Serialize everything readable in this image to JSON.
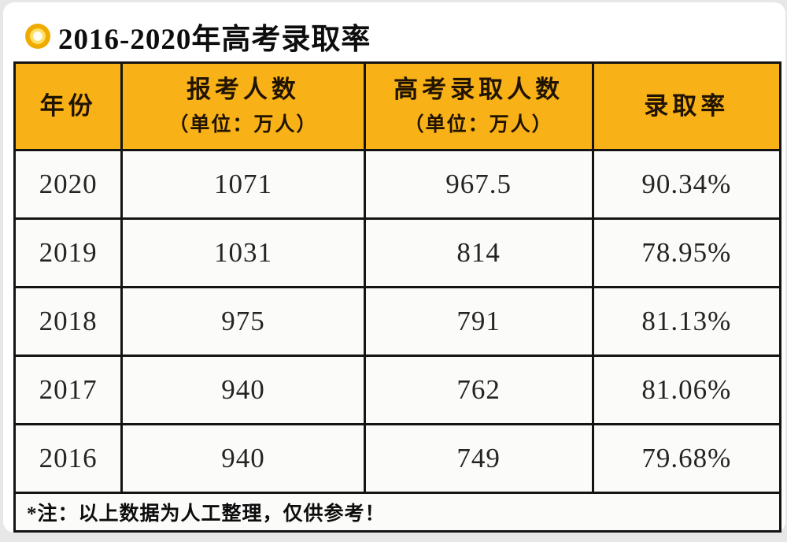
{
  "page": {
    "background_color": "#e7e7e7",
    "card_color": "#ffffff"
  },
  "header": {
    "icon": "gold-ring-icon",
    "icon_color": "#f0ab00",
    "title": "2016-2020年高考录取率"
  },
  "table": {
    "header_bg": "#f8b117",
    "border_color": "#141414",
    "columns": [
      {
        "label": "年份",
        "sublabel": ""
      },
      {
        "label": "报考人数",
        "sublabel": "（单位：万人）"
      },
      {
        "label": "高考录取人数",
        "sublabel": "（单位：万人）"
      },
      {
        "label": "录取率",
        "sublabel": ""
      }
    ],
    "rows": [
      [
        "2020",
        "1071",
        "967.5",
        "90.34%"
      ],
      [
        "2019",
        "1031",
        "814",
        "78.95%"
      ],
      [
        "2018",
        "975",
        "791",
        "81.13%"
      ],
      [
        "2017",
        "940",
        "762",
        "81.06%"
      ],
      [
        "2016",
        "940",
        "749",
        "79.68%"
      ]
    ],
    "footnote": "*注：以上数据为人工整理，仅供参考！"
  },
  "chart_data": {
    "type": "table",
    "title": "2016-2020年高考录取率",
    "columns": [
      "年份",
      "报考人数（单位：万人）",
      "高考录取人数（单位：万人）",
      "录取率"
    ],
    "rows": [
      {
        "year": 2020,
        "applicants_wan": 1071,
        "admitted_wan": 967.5,
        "admission_rate_pct": 90.34
      },
      {
        "year": 2019,
        "applicants_wan": 1031,
        "admitted_wan": 814,
        "admission_rate_pct": 78.95
      },
      {
        "year": 2018,
        "applicants_wan": 975,
        "admitted_wan": 791,
        "admission_rate_pct": 81.13
      },
      {
        "year": 2017,
        "applicants_wan": 940,
        "admitted_wan": 762,
        "admission_rate_pct": 81.06
      },
      {
        "year": 2016,
        "applicants_wan": 940,
        "admitted_wan": 749,
        "admission_rate_pct": 79.68
      }
    ],
    "note": "*注：以上数据为人工整理，仅供参考！"
  }
}
